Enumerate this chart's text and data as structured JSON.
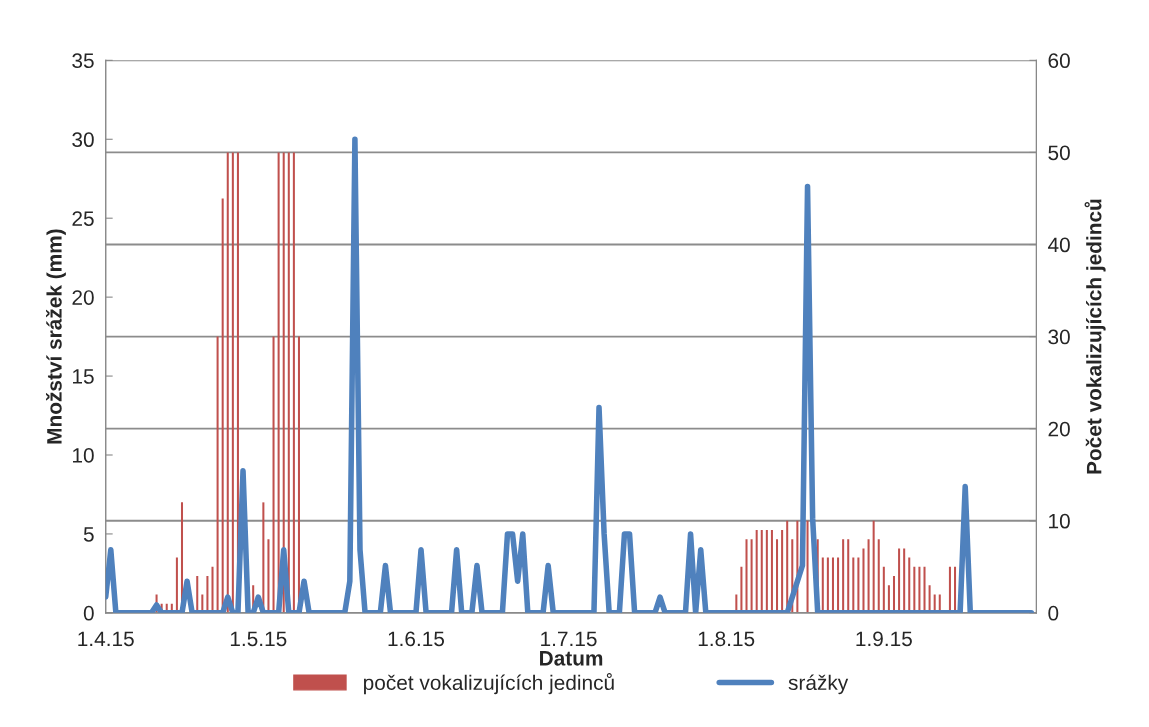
{
  "chart_data": {
    "type": "line",
    "xlabel": "Datum",
    "ylabel": "Množství srážek (mm)",
    "y2label": "Počet vokalizujících jedinců",
    "xlim": [
      "2015-04-01",
      "2015-10-01"
    ],
    "xticks": [
      {
        "value": "2015-04-01",
        "label": "1.4.15"
      },
      {
        "value": "2015-05-01",
        "label": "1.5.15"
      },
      {
        "value": "2015-06-01",
        "label": "1.6.15"
      },
      {
        "value": "2015-07-01",
        "label": "1.7.15"
      },
      {
        "value": "2015-08-01",
        "label": "1.8.15"
      },
      {
        "value": "2015-09-01",
        "label": "1.9.15"
      }
    ],
    "ylim": [
      0,
      35
    ],
    "yticks": [
      0,
      5,
      10,
      15,
      20,
      25,
      30,
      35
    ],
    "y2lim": [
      0,
      60
    ],
    "y2ticks": [
      0,
      10,
      20,
      30,
      40,
      50,
      60
    ],
    "grid": "y",
    "legend": "bottom",
    "marker": "none",
    "line_style": "solid",
    "series": [
      {
        "name": "počet vokalizujících jedinců",
        "type": "bar",
        "axis": "y2",
        "color": "#c0504d",
        "x": [
          "2015-04-11",
          "2015-04-12",
          "2015-04-13",
          "2015-04-14",
          "2015-04-15",
          "2015-04-16",
          "2015-04-19",
          "2015-04-20",
          "2015-04-21",
          "2015-04-22",
          "2015-04-23",
          "2015-04-24",
          "2015-04-25",
          "2015-04-26",
          "2015-04-27",
          "2015-04-30",
          "2015-05-02",
          "2015-05-03",
          "2015-05-04",
          "2015-05-05",
          "2015-05-06",
          "2015-05-07",
          "2015-05-08",
          "2015-05-09",
          "2015-08-03",
          "2015-08-04",
          "2015-08-05",
          "2015-08-06",
          "2015-08-07",
          "2015-08-08",
          "2015-08-09",
          "2015-08-10",
          "2015-08-11",
          "2015-08-12",
          "2015-08-13",
          "2015-08-14",
          "2015-08-15",
          "2015-08-17",
          "2015-08-19",
          "2015-08-20",
          "2015-08-21",
          "2015-08-22",
          "2015-08-23",
          "2015-08-24",
          "2015-08-25",
          "2015-08-26",
          "2015-08-27",
          "2015-08-28",
          "2015-08-29",
          "2015-08-30",
          "2015-08-31",
          "2015-09-01",
          "2015-09-02",
          "2015-09-03",
          "2015-09-04",
          "2015-09-05",
          "2015-09-06",
          "2015-09-07",
          "2015-09-08",
          "2015-09-09",
          "2015-09-10",
          "2015-09-11",
          "2015-09-12",
          "2015-09-14",
          "2015-09-15"
        ],
        "values": [
          2,
          1,
          1,
          1,
          6,
          12,
          4,
          2,
          4,
          5,
          30,
          45,
          50,
          50,
          50,
          3,
          12,
          8,
          30,
          50,
          50,
          50,
          50,
          30,
          2,
          5,
          8,
          8,
          9,
          9,
          9,
          9,
          8,
          9,
          10,
          8,
          10,
          10,
          8,
          6,
          6,
          6,
          6,
          8,
          8,
          6,
          6,
          7,
          8,
          10,
          8,
          5,
          3,
          4,
          7,
          7,
          6,
          5,
          5,
          5,
          3,
          2,
          2,
          5,
          5
        ]
      },
      {
        "name": "srážky",
        "color": "#4f81bd",
        "x": [
          "2015-04-01",
          "2015-04-02",
          "2015-04-03",
          "2015-04-10",
          "2015-04-11",
          "2015-04-12",
          "2015-04-16",
          "2015-04-17",
          "2015-04-18",
          "2015-04-24",
          "2015-04-25",
          "2015-04-26",
          "2015-04-27",
          "2015-04-28",
          "2015-04-29",
          "2015-04-30",
          "2015-05-01",
          "2015-05-02",
          "2015-05-05",
          "2015-05-06",
          "2015-05-07",
          "2015-05-09",
          "2015-05-10",
          "2015-05-11",
          "2015-05-18",
          "2015-05-19",
          "2015-05-20",
          "2015-05-21",
          "2015-05-22",
          "2015-05-25",
          "2015-05-26",
          "2015-05-27",
          "2015-06-01",
          "2015-06-02",
          "2015-06-03",
          "2015-06-08",
          "2015-06-09",
          "2015-06-10",
          "2015-06-12",
          "2015-06-13",
          "2015-06-14",
          "2015-06-18",
          "2015-06-19",
          "2015-06-20",
          "2015-06-21",
          "2015-06-22",
          "2015-06-23",
          "2015-06-26",
          "2015-06-27",
          "2015-06-28",
          "2015-07-06",
          "2015-07-07",
          "2015-07-08",
          "2015-07-09",
          "2015-07-11",
          "2015-07-12",
          "2015-07-13",
          "2015-07-14",
          "2015-07-18",
          "2015-07-19",
          "2015-07-20",
          "2015-07-24",
          "2015-07-25",
          "2015-07-26",
          "2015-07-27",
          "2015-07-28",
          "2015-08-13",
          "2015-08-14",
          "2015-08-15",
          "2015-08-16",
          "2015-08-17",
          "2015-08-18",
          "2015-08-19",
          "2015-09-16",
          "2015-09-17",
          "2015-09-18",
          "2015-09-30"
        ],
        "values": [
          1,
          4,
          0,
          0,
          0.5,
          0,
          0,
          2,
          0,
          0,
          1,
          0,
          0,
          9,
          0,
          0,
          1,
          0,
          0,
          4,
          0,
          0,
          2,
          0,
          0,
          2,
          30,
          4,
          0,
          0,
          3,
          0,
          0,
          4,
          0,
          0,
          4,
          0,
          0,
          3,
          0,
          0,
          5,
          5,
          2,
          5,
          0,
          0,
          3,
          0,
          0,
          13,
          5,
          0,
          0,
          5,
          5,
          0,
          0,
          1,
          0,
          0,
          5,
          0,
          4,
          0,
          0,
          1,
          2,
          3,
          27,
          6,
          0,
          0,
          8,
          0,
          0
        ]
      }
    ]
  }
}
